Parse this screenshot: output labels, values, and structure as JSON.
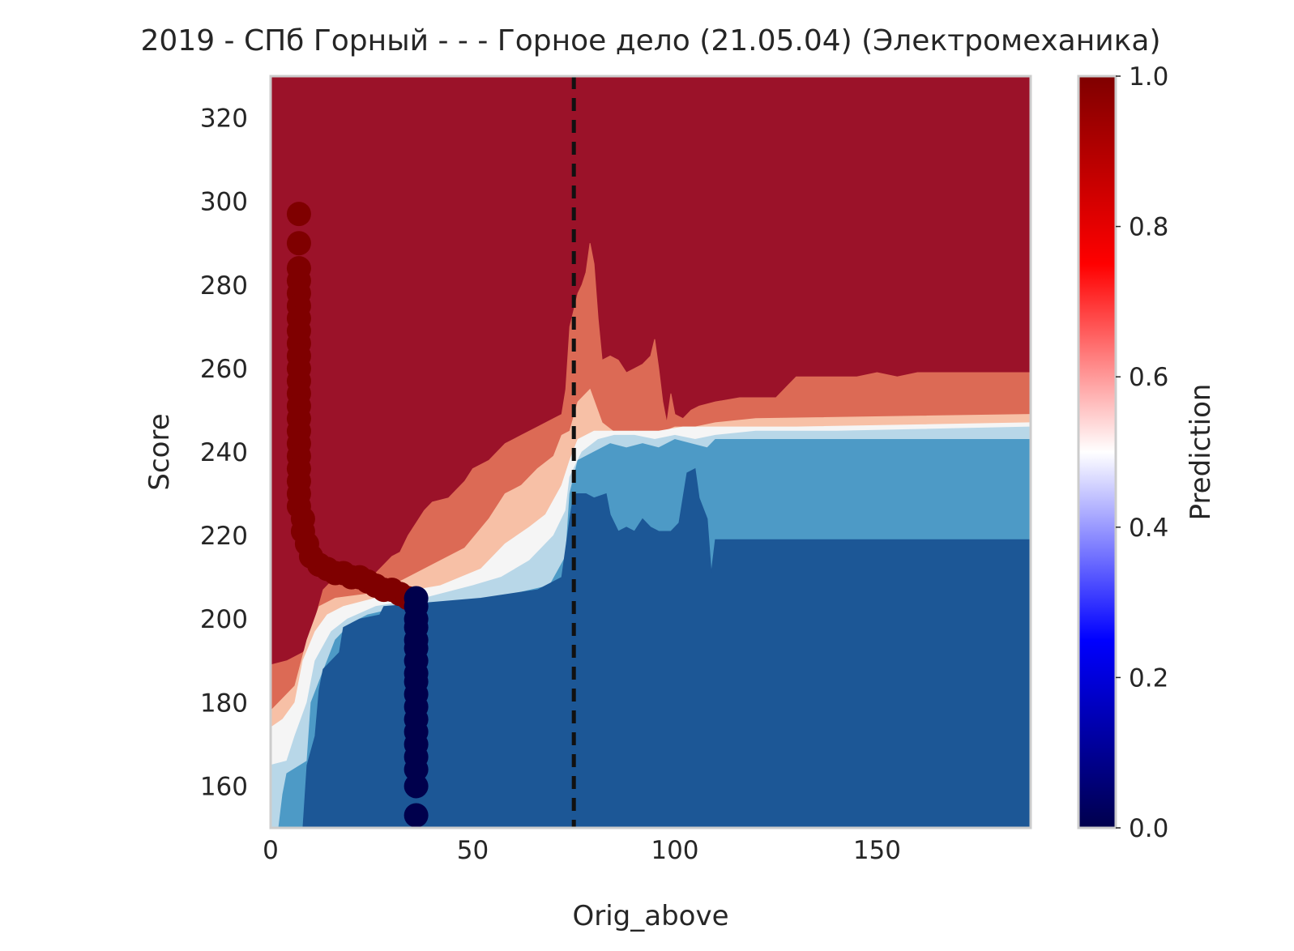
{
  "chart_data": {
    "type": "heatmap",
    "title": "2019 - СПб Горный - - - Горное дело (21.05.04) (Электромеханика)",
    "xlabel": "Orig_above",
    "ylabel": "Score",
    "xlim": [
      0,
      188
    ],
    "ylim": [
      150,
      330
    ],
    "xticks": [
      0,
      50,
      100,
      150
    ],
    "yticks": [
      160,
      180,
      200,
      220,
      240,
      260,
      280,
      300,
      320
    ],
    "grid": false,
    "reference_line": {
      "x": 75,
      "style": "dashed",
      "color": "#111111"
    },
    "colorbar": {
      "label": "Prediction",
      "range": [
        0.0,
        1.0
      ],
      "ticks": [
        0.0,
        0.2,
        0.4,
        0.6,
        0.8,
        1.0
      ],
      "colormap": "seismic"
    },
    "contour_levels": [
      {
        "band": "0.0-0.1",
        "color": "#1c5796"
      },
      {
        "band": "0.1-0.3",
        "color": "#4d9ac6"
      },
      {
        "band": "0.3-0.45",
        "color": "#b8d7e8"
      },
      {
        "band": "0.45-0.55",
        "color": "#f5f5f5"
      },
      {
        "band": "0.55-0.7",
        "color": "#f7c0a6"
      },
      {
        "band": "0.7-0.9",
        "color": "#dc6a55"
      },
      {
        "band": "0.9-1.0",
        "color": "#9b1229"
      }
    ],
    "contours": {
      "c1": [
        [
          0,
          150
        ],
        [
          8,
          150
        ],
        [
          9,
          165
        ],
        [
          11,
          172
        ],
        [
          12,
          183
        ],
        [
          13,
          188
        ],
        [
          17,
          192
        ],
        [
          18,
          198
        ],
        [
          22,
          200
        ],
        [
          27,
          201
        ],
        [
          28,
          203
        ],
        [
          40,
          204
        ],
        [
          52,
          205
        ],
        [
          66,
          207
        ],
        [
          72,
          210
        ],
        [
          74,
          224
        ],
        [
          75,
          230
        ],
        [
          78,
          230
        ],
        [
          80,
          229
        ],
        [
          83,
          230
        ],
        [
          84,
          225
        ],
        [
          86,
          221
        ],
        [
          88,
          222
        ],
        [
          90,
          221
        ],
        [
          92,
          224
        ],
        [
          94,
          222
        ],
        [
          96,
          221
        ],
        [
          99,
          221
        ],
        [
          101,
          223
        ],
        [
          102,
          229
        ],
        [
          103,
          235
        ],
        [
          105,
          236
        ],
        [
          106,
          229
        ],
        [
          108,
          224
        ],
        [
          109,
          211
        ],
        [
          110,
          219
        ],
        [
          188,
          219
        ]
      ],
      "c2": [
        [
          0,
          150
        ],
        [
          2,
          150
        ],
        [
          3,
          158
        ],
        [
          4,
          163
        ],
        [
          9,
          166
        ],
        [
          10,
          180
        ],
        [
          14,
          190
        ],
        [
          16,
          195
        ],
        [
          20,
          199
        ],
        [
          24,
          201
        ],
        [
          33,
          203
        ],
        [
          47,
          204
        ],
        [
          60,
          206
        ],
        [
          69,
          208
        ],
        [
          73,
          215
        ],
        [
          74,
          230
        ],
        [
          76,
          238
        ],
        [
          80,
          240
        ],
        [
          84,
          242
        ],
        [
          88,
          241
        ],
        [
          92,
          242
        ],
        [
          96,
          241
        ],
        [
          100,
          243
        ],
        [
          104,
          242
        ],
        [
          108,
          241
        ],
        [
          110,
          243
        ],
        [
          188,
          243
        ]
      ],
      "c3": [
        [
          0,
          165
        ],
        [
          4,
          166
        ],
        [
          6,
          172
        ],
        [
          9,
          180
        ],
        [
          11,
          190
        ],
        [
          15,
          197
        ],
        [
          19,
          200
        ],
        [
          26,
          203
        ],
        [
          38,
          205
        ],
        [
          50,
          208
        ],
        [
          57,
          210
        ],
        [
          64,
          214
        ],
        [
          70,
          220
        ],
        [
          73,
          226
        ],
        [
          74,
          234
        ],
        [
          77,
          240
        ],
        [
          81,
          243
        ],
        [
          85,
          244
        ],
        [
          90,
          244
        ],
        [
          95,
          243
        ],
        [
          100,
          244
        ],
        [
          105,
          243
        ],
        [
          110,
          244
        ],
        [
          120,
          245
        ],
        [
          140,
          245
        ],
        [
          188,
          246
        ]
      ],
      "c4": [
        [
          0,
          174
        ],
        [
          3,
          176
        ],
        [
          6,
          180
        ],
        [
          8,
          190
        ],
        [
          11,
          197
        ],
        [
          14,
          201
        ],
        [
          18,
          203
        ],
        [
          30,
          206
        ],
        [
          42,
          208
        ],
        [
          52,
          212
        ],
        [
          58,
          218
        ],
        [
          64,
          222
        ],
        [
          68,
          225
        ],
        [
          72,
          232
        ],
        [
          74,
          238
        ],
        [
          76,
          243
        ],
        [
          80,
          245
        ],
        [
          85,
          245
        ],
        [
          90,
          245
        ],
        [
          96,
          245
        ],
        [
          102,
          246
        ],
        [
          110,
          246
        ],
        [
          130,
          246
        ],
        [
          188,
          247
        ]
      ],
      "c5": [
        [
          0,
          178
        ],
        [
          3,
          181
        ],
        [
          6,
          184
        ],
        [
          9,
          195
        ],
        [
          12,
          203
        ],
        [
          16,
          205
        ],
        [
          24,
          206
        ],
        [
          32,
          209
        ],
        [
          40,
          213
        ],
        [
          48,
          217
        ],
        [
          54,
          224
        ],
        [
          58,
          230
        ],
        [
          62,
          232
        ],
        [
          66,
          236
        ],
        [
          70,
          239
        ],
        [
          72,
          244
        ],
        [
          74,
          245
        ],
        [
          76,
          252
        ],
        [
          79,
          255
        ],
        [
          82,
          247
        ],
        [
          86,
          244
        ],
        [
          90,
          245
        ],
        [
          95,
          244
        ],
        [
          100,
          246
        ],
        [
          105,
          246
        ],
        [
          110,
          247
        ],
        [
          120,
          248
        ],
        [
          188,
          249
        ]
      ],
      "c6": [
        [
          0,
          189
        ],
        [
          4,
          190
        ],
        [
          8,
          192
        ],
        [
          10,
          195
        ],
        [
          11,
          200
        ],
        [
          13,
          207
        ],
        [
          16,
          210
        ],
        [
          22,
          209
        ],
        [
          26,
          211
        ],
        [
          28,
          213
        ],
        [
          30,
          215
        ],
        [
          32,
          216
        ],
        [
          34,
          220
        ],
        [
          36,
          223
        ],
        [
          38,
          226
        ],
        [
          40,
          228
        ],
        [
          44,
          229
        ],
        [
          46,
          231
        ],
        [
          48,
          233
        ],
        [
          50,
          236
        ],
        [
          54,
          238
        ],
        [
          56,
          240
        ],
        [
          58,
          242
        ],
        [
          62,
          244
        ],
        [
          66,
          246
        ],
        [
          70,
          248
        ],
        [
          72,
          249
        ],
        [
          73,
          255
        ],
        [
          74,
          270
        ],
        [
          76,
          278
        ],
        [
          77,
          280
        ],
        [
          78,
          283
        ],
        [
          79,
          290
        ],
        [
          80,
          285
        ],
        [
          81,
          272
        ],
        [
          82,
          262
        ],
        [
          84,
          263
        ],
        [
          86,
          262
        ],
        [
          88,
          259
        ],
        [
          90,
          260
        ],
        [
          92,
          261
        ],
        [
          94,
          263
        ],
        [
          95,
          267
        ],
        [
          96,
          260
        ],
        [
          97,
          252
        ],
        [
          98,
          247
        ],
        [
          99,
          254
        ],
        [
          100,
          249
        ],
        [
          102,
          248
        ],
        [
          104,
          250
        ],
        [
          106,
          251
        ],
        [
          110,
          252
        ],
        [
          116,
          253
        ],
        [
          125,
          253
        ],
        [
          128,
          256
        ],
        [
          130,
          258
        ],
        [
          135,
          258
        ],
        [
          140,
          258
        ],
        [
          145,
          258
        ],
        [
          150,
          259
        ],
        [
          155,
          258
        ],
        [
          160,
          259
        ],
        [
          188,
          259
        ]
      ]
    },
    "scatter_series": [
      {
        "class": 1,
        "color": "#7f0000",
        "points": [
          [
            7,
            297
          ],
          [
            7,
            290
          ],
          [
            7,
            284
          ],
          [
            7,
            281
          ],
          [
            7,
            278
          ],
          [
            7,
            275
          ],
          [
            7,
            272
          ],
          [
            7,
            269
          ],
          [
            7,
            266
          ],
          [
            7,
            263
          ],
          [
            7,
            260
          ],
          [
            7,
            257
          ],
          [
            7,
            254
          ],
          [
            7,
            251
          ],
          [
            7,
            248
          ],
          [
            7,
            245
          ],
          [
            7,
            242
          ],
          [
            7,
            239
          ],
          [
            7,
            236
          ],
          [
            7,
            233
          ],
          [
            7,
            230
          ],
          [
            7,
            227
          ],
          [
            8,
            224
          ],
          [
            8,
            221
          ],
          [
            9,
            218
          ],
          [
            10,
            215
          ],
          [
            12,
            213
          ],
          [
            14,
            212
          ],
          [
            16,
            211
          ],
          [
            18,
            211
          ],
          [
            20,
            210
          ],
          [
            22,
            210
          ],
          [
            24,
            209
          ],
          [
            26,
            208
          ],
          [
            28,
            207
          ],
          [
            30,
            207
          ],
          [
            32,
            206
          ],
          [
            34,
            205
          ]
        ]
      },
      {
        "class": 0,
        "color": "#00004c",
        "points": [
          [
            36,
            205
          ],
          [
            36,
            203
          ],
          [
            36,
            200
          ],
          [
            36,
            198
          ],
          [
            36,
            195
          ],
          [
            36,
            193
          ],
          [
            36,
            190
          ],
          [
            36,
            187
          ],
          [
            36,
            185
          ],
          [
            36,
            182
          ],
          [
            36,
            179
          ],
          [
            36,
            176
          ],
          [
            36,
            173
          ],
          [
            36,
            170
          ],
          [
            36,
            167
          ],
          [
            36,
            164
          ],
          [
            36,
            160
          ],
          [
            36,
            153
          ]
        ]
      }
    ]
  }
}
